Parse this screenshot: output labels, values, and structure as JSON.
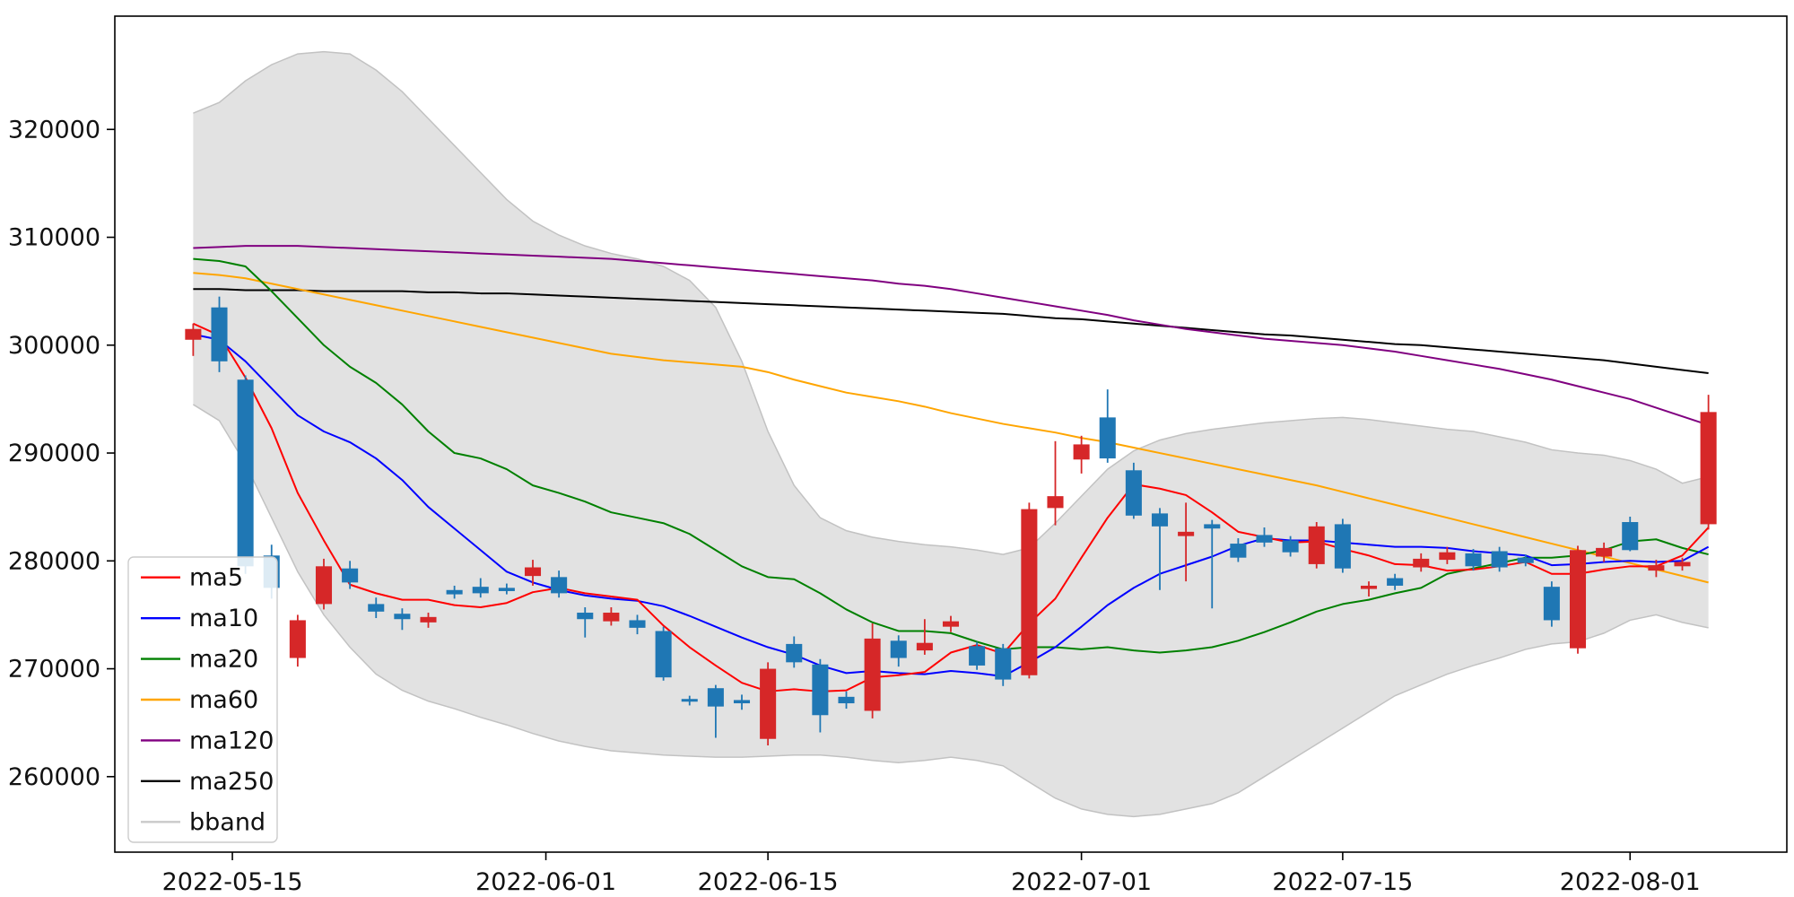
{
  "figure": {
    "background": "#ffffff",
    "axes_edge_color": "#000000",
    "tick_label_color": "#111111"
  },
  "chart_data": {
    "type": "candlestick",
    "title": "",
    "xlabel": "",
    "ylabel": "",
    "grid": false,
    "legend_position": "lower-left",
    "ylim": [
      253000,
      330500
    ],
    "y_ticks": [
      260000,
      270000,
      280000,
      290000,
      300000,
      310000,
      320000
    ],
    "x_ticks": [
      {
        "label": "2022-05-15",
        "index": 1.5
      },
      {
        "label": "2022-06-01",
        "index": 13.5
      },
      {
        "label": "2022-06-15",
        "index": 22
      },
      {
        "label": "2022-07-01",
        "index": 34
      },
      {
        "label": "2022-07-15",
        "index": 44
      },
      {
        "label": "2022-08-01",
        "index": 55
      }
    ],
    "candle_colors": {
      "up": "#d62728",
      "down": "#1f77b4"
    },
    "candle_columns": [
      "date",
      "open",
      "high",
      "low",
      "close"
    ],
    "candles": [
      [
        "2022-05-12",
        300500,
        302000,
        299000,
        301500
      ],
      [
        "2022-05-13",
        303500,
        304500,
        297500,
        298500
      ],
      [
        "2022-05-16",
        296800,
        297200,
        278800,
        279500
      ],
      [
        "2022-05-17",
        280500,
        281500,
        276500,
        277500
      ],
      [
        "2022-05-18",
        271000,
        275000,
        270200,
        274500
      ],
      [
        "2022-05-19",
        276000,
        280200,
        275500,
        279500
      ],
      [
        "2022-05-20",
        279300,
        280000,
        277400,
        278000
      ],
      [
        "2022-05-23",
        276000,
        276600,
        274700,
        275300
      ],
      [
        "2022-05-24",
        275100,
        275600,
        273600,
        274600
      ],
      [
        "2022-05-25",
        274300,
        275200,
        273800,
        274800
      ],
      [
        "2022-05-26",
        277300,
        277700,
        276500,
        276900
      ],
      [
        "2022-05-27",
        277600,
        278400,
        276600,
        277000
      ],
      [
        "2022-05-30",
        277500,
        277900,
        276900,
        277200
      ],
      [
        "2022-05-31",
        278600,
        280100,
        277700,
        279400
      ],
      [
        "2022-06-02",
        278500,
        279100,
        276600,
        277000
      ],
      [
        "2022-06-03",
        275200,
        275700,
        272900,
        274600
      ],
      [
        "2022-06-07",
        274400,
        275700,
        274000,
        275200
      ],
      [
        "2022-06-08",
        274500,
        275000,
        273200,
        273800
      ],
      [
        "2022-06-09",
        273500,
        273900,
        268900,
        269200
      ],
      [
        "2022-06-10",
        267200,
        267500,
        266600,
        267000
      ],
      [
        "2022-06-13",
        268200,
        268500,
        263600,
        266500
      ],
      [
        "2022-06-14",
        267100,
        267600,
        266200,
        266800
      ],
      [
        "2022-06-15",
        263500,
        270600,
        262900,
        270000
      ],
      [
        "2022-06-16",
        272300,
        273000,
        270100,
        270600
      ],
      [
        "2022-06-17",
        270400,
        270900,
        264100,
        265700
      ],
      [
        "2022-06-20",
        267400,
        267900,
        266300,
        266800
      ],
      [
        "2022-06-21",
        266100,
        274200,
        265400,
        272800
      ],
      [
        "2022-06-22",
        272600,
        273100,
        270200,
        271000
      ],
      [
        "2022-06-23",
        271700,
        274600,
        271300,
        272400
      ],
      [
        "2022-06-24",
        273900,
        274900,
        273400,
        274400
      ],
      [
        "2022-06-27",
        272100,
        272500,
        269900,
        270300
      ],
      [
        "2022-06-28",
        271900,
        272300,
        268400,
        269000
      ],
      [
        "2022-06-29",
        269400,
        285400,
        269100,
        284800
      ],
      [
        "2022-06-30",
        284900,
        291100,
        283300,
        286000
      ],
      [
        "2022-07-01",
        289400,
        291600,
        288100,
        290800
      ],
      [
        "2022-07-04",
        293300,
        295900,
        289100,
        289500
      ],
      [
        "2022-07-05",
        288400,
        289100,
        283900,
        284200
      ],
      [
        "2022-07-06",
        284400,
        284900,
        277300,
        283200
      ],
      [
        "2022-07-07",
        282300,
        285400,
        278100,
        282700
      ],
      [
        "2022-07-08",
        283400,
        283800,
        275600,
        283000
      ],
      [
        "2022-07-11",
        281600,
        282100,
        279900,
        280300
      ],
      [
        "2022-07-12",
        282400,
        283100,
        281300,
        281700
      ],
      [
        "2022-07-13",
        281900,
        282300,
        280400,
        280800
      ],
      [
        "2022-07-14",
        279700,
        283600,
        279300,
        283200
      ],
      [
        "2022-07-15",
        283400,
        283900,
        278900,
        279300
      ],
      [
        "2022-07-18",
        277400,
        278100,
        276700,
        277700
      ],
      [
        "2022-07-19",
        278400,
        278800,
        277300,
        277700
      ],
      [
        "2022-07-20",
        279400,
        280700,
        279000,
        280200
      ],
      [
        "2022-07-21",
        280100,
        281300,
        279700,
        280800
      ],
      [
        "2022-07-22",
        280700,
        281100,
        279100,
        279500
      ],
      [
        "2022-07-25",
        280900,
        281300,
        279000,
        279400
      ],
      [
        "2022-07-26",
        280300,
        280600,
        279500,
        279800
      ],
      [
        "2022-07-27",
        277600,
        278100,
        273900,
        274500
      ],
      [
        "2022-07-28",
        271900,
        281400,
        271400,
        281000
      ],
      [
        "2022-07-29",
        280400,
        281700,
        279900,
        281200
      ],
      [
        "2022-08-01",
        283600,
        284100,
        280900,
        281000
      ],
      [
        "2022-08-02",
        279100,
        280100,
        278500,
        279600
      ],
      [
        "2022-08-03",
        279500,
        280300,
        279100,
        279900
      ],
      [
        "2022-08-04",
        283400,
        295400,
        282900,
        293800
      ]
    ],
    "series": [
      {
        "name": "ma5",
        "color": "#ff0000",
        "values": [
          302000,
          300900,
          297000,
          292300,
          286300,
          281900,
          277800,
          277000,
          276400,
          276400,
          275900,
          275700,
          276100,
          277100,
          277500,
          277000,
          276700,
          276400,
          274000,
          272000,
          270300,
          268700,
          267900,
          268100,
          267900,
          268000,
          269200,
          269400,
          269700,
          271500,
          272200,
          271400,
          274200,
          276500,
          280300,
          284000,
          287100,
          286700,
          286100,
          284500,
          282700,
          282200,
          281700,
          281800,
          281100,
          280500,
          279700,
          279600,
          279100,
          279200,
          279500,
          279900,
          278800,
          278800,
          279200,
          279500,
          279500,
          280500,
          283100
        ]
      },
      {
        "name": "ma10",
        "color": "#0000ff",
        "values": [
          301000,
          300500,
          298500,
          296000,
          293500,
          292000,
          291000,
          289500,
          287500,
          285000,
          283000,
          281000,
          279000,
          278000,
          277300,
          276800,
          276500,
          276300,
          275800,
          274900,
          273900,
          272900,
          272000,
          271300,
          270300,
          269600,
          269800,
          269600,
          269500,
          269800,
          269600,
          269300,
          270600,
          272000,
          273900,
          275900,
          277500,
          278800,
          279600,
          280400,
          281400,
          282100,
          281900,
          281900,
          281700,
          281500,
          281300,
          281300,
          281200,
          280900,
          280700,
          280500,
          279600,
          279700,
          279900,
          280000,
          279900,
          280000,
          281300
        ]
      },
      {
        "name": "ma20",
        "color": "#008000",
        "values": [
          308000,
          307800,
          307300,
          305000,
          302500,
          300000,
          298000,
          296500,
          294500,
          292000,
          290000,
          289500,
          288500,
          287000,
          286300,
          285500,
          284500,
          284000,
          283500,
          282500,
          281000,
          279500,
          278500,
          278300,
          277000,
          275500,
          274300,
          273500,
          273500,
          273300,
          272500,
          271800,
          272000,
          272000,
          271800,
          272000,
          271700,
          271500,
          271700,
          272000,
          272600,
          273400,
          274300,
          275300,
          276000,
          276400,
          277000,
          277500,
          278800,
          279300,
          279800,
          280300,
          280300,
          280500,
          281000,
          281800,
          282000,
          281200,
          280600
        ]
      },
      {
        "name": "ma60",
        "color": "#ffa500",
        "values": [
          306700,
          306500,
          306200,
          305700,
          305200,
          304700,
          304200,
          303700,
          303200,
          302700,
          302200,
          301700,
          301200,
          300700,
          300200,
          299700,
          299200,
          298900,
          298600,
          298400,
          298200,
          298000,
          297500,
          296800,
          296200,
          295600,
          295200,
          294800,
          294300,
          293700,
          293200,
          292700,
          292300,
          291900,
          291400,
          291000,
          290500,
          290000,
          289500,
          289000,
          288500,
          288000,
          287500,
          287000,
          286400,
          285800,
          285200,
          284600,
          284000,
          283400,
          282800,
          282200,
          281600,
          281000,
          280400,
          279800,
          279200,
          278600,
          278000
        ]
      },
      {
        "name": "ma120",
        "color": "#800080",
        "values": [
          309000,
          309100,
          309200,
          309200,
          309200,
          309100,
          309000,
          308900,
          308800,
          308700,
          308600,
          308500,
          308400,
          308300,
          308200,
          308100,
          308000,
          307800,
          307600,
          307400,
          307200,
          307000,
          306800,
          306600,
          306400,
          306200,
          306000,
          305700,
          305500,
          305200,
          304800,
          304400,
          304000,
          303600,
          303200,
          302800,
          302300,
          301900,
          301500,
          301200,
          300900,
          300600,
          300400,
          300200,
          300000,
          299700,
          299400,
          299000,
          298600,
          298200,
          297800,
          297300,
          296800,
          296200,
          295600,
          295000,
          294200,
          293400,
          292600
        ]
      },
      {
        "name": "ma250",
        "color": "#000000",
        "values": [
          305200,
          305200,
          305100,
          305100,
          305100,
          305000,
          305000,
          305000,
          305000,
          304900,
          304900,
          304800,
          304800,
          304700,
          304600,
          304500,
          304400,
          304300,
          304200,
          304100,
          304000,
          303900,
          303800,
          303700,
          303600,
          303500,
          303400,
          303300,
          303200,
          303100,
          303000,
          302900,
          302700,
          302500,
          302400,
          302200,
          302000,
          301800,
          301600,
          301400,
          301200,
          301000,
          300900,
          300700,
          300500,
          300300,
          300100,
          300000,
          299800,
          299600,
          299400,
          299200,
          299000,
          298800,
          298600,
          298300,
          298000,
          297700,
          297400
        ]
      }
    ],
    "band": {
      "name": "bband",
      "fill": "#e2e2e2",
      "edge": "#c2c2c2",
      "legend_color": "#c9c9c9",
      "upper": [
        321500,
        322500,
        324500,
        326000,
        327000,
        327200,
        327000,
        325500,
        323500,
        321000,
        318500,
        316000,
        313500,
        311500,
        310200,
        309200,
        308500,
        308000,
        307300,
        306000,
        303500,
        298500,
        292000,
        287000,
        284000,
        282800,
        282200,
        281800,
        281500,
        281300,
        281000,
        280600,
        281200,
        283500,
        286000,
        288500,
        290200,
        291200,
        291800,
        292200,
        292500,
        292800,
        293000,
        293200,
        293300,
        293100,
        292800,
        292500,
        292200,
        292000,
        291500,
        291000,
        290300,
        290000,
        289800,
        289300,
        288500,
        287200,
        287800
      ],
      "lower": [
        294500,
        293000,
        289000,
        284000,
        279000,
        275000,
        272000,
        269500,
        268000,
        267000,
        266300,
        265500,
        264800,
        264000,
        263300,
        262800,
        262400,
        262200,
        262000,
        261900,
        261800,
        261800,
        261900,
        262000,
        262000,
        261800,
        261500,
        261300,
        261500,
        261800,
        261500,
        261000,
        259500,
        258000,
        257000,
        256500,
        256300,
        256500,
        257000,
        257500,
        258500,
        260000,
        261500,
        263000,
        264500,
        266000,
        267500,
        268500,
        269500,
        270300,
        271000,
        271800,
        272300,
        272500,
        273300,
        274500,
        275000,
        274300,
        273800
      ]
    },
    "legend_labels": [
      "ma5",
      "ma10",
      "ma20",
      "ma60",
      "ma120",
      "ma250",
      "bband"
    ]
  }
}
